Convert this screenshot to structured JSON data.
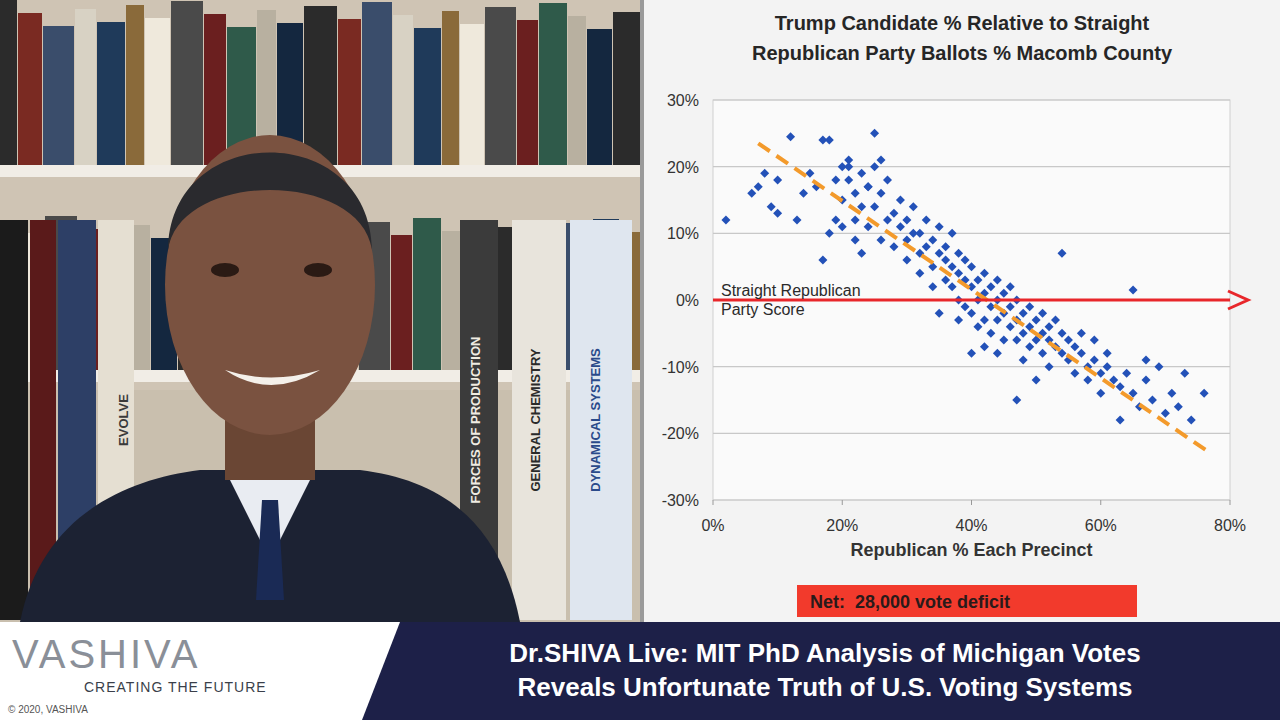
{
  "chart_data": {
    "type": "scatter",
    "title": "Trump Candidate % Relative to Straight Republican Party Ballots % Macomb County",
    "x_label": "Republican % Each Precinct",
    "annotations": [
      "Net:  28,000 vote deficit"
    ],
    "xlim": [
      0,
      80
    ],
    "xticks": [
      {
        "value": 0,
        "label": "0%"
      },
      {
        "value": 20,
        "label": "20%"
      },
      {
        "value": 40,
        "label": "40%"
      },
      {
        "value": 60,
        "label": "60%"
      },
      {
        "value": 80,
        "label": "80%"
      }
    ],
    "ylim": [
      -30,
      30
    ],
    "yticks": [
      {
        "value": -30,
        "label": "-30%"
      },
      {
        "value": -20,
        "label": "-20%"
      },
      {
        "value": -10,
        "label": "-10%"
      },
      {
        "value": 0,
        "label": "0%"
      },
      {
        "value": 10,
        "label": "10%"
      },
      {
        "value": 20,
        "label": "20%"
      },
      {
        "value": 30,
        "label": "30%"
      }
    ],
    "grid": true,
    "series": [
      {
        "type": "scatter",
        "color": "#2351b8",
        "marker": "diamond",
        "x": [
          2,
          6,
          7,
          8,
          9,
          10,
          10,
          12,
          13,
          14,
          15,
          16,
          17,
          18,
          17,
          18,
          19,
          19,
          20,
          20,
          21,
          21,
          22,
          22,
          22,
          23,
          23,
          23,
          24,
          24,
          25,
          25,
          25,
          26,
          26,
          27,
          27,
          28,
          28,
          29,
          29,
          30,
          30,
          30,
          31,
          31,
          32,
          32,
          32,
          33,
          33,
          34,
          34,
          34,
          35,
          35,
          35,
          36,
          36,
          36,
          37,
          37,
          37,
          38,
          38,
          38,
          38,
          39,
          39,
          39,
          40,
          40,
          40,
          40,
          41,
          41,
          41,
          42,
          42,
          42,
          42,
          43,
          43,
          43,
          44,
          44,
          44,
          44,
          45,
          45,
          45,
          46,
          46,
          46,
          47,
          47,
          47,
          47,
          48,
          48,
          48,
          49,
          49,
          49,
          50,
          50,
          50,
          51,
          51,
          51,
          52,
          52,
          52,
          53,
          53,
          54,
          54,
          54,
          55,
          55,
          56,
          56,
          57,
          57,
          58,
          58,
          59,
          59,
          60,
          60,
          61,
          61,
          62,
          63,
          63,
          64,
          65,
          65,
          66,
          67,
          67,
          68,
          69,
          70,
          71,
          72,
          73,
          74,
          76,
          26,
          21,
          24,
          20
        ],
        "values": [
          12,
          16,
          17,
          19,
          14,
          18,
          13,
          24.5,
          12,
          16,
          19,
          17,
          24,
          24,
          6,
          10,
          18,
          12,
          20,
          15,
          20,
          18,
          16,
          12,
          9,
          19,
          14,
          7,
          17,
          11,
          20,
          25,
          14,
          16,
          9,
          18,
          12,
          13,
          8,
          15,
          11,
          12,
          6,
          9,
          14,
          10,
          10,
          7,
          4,
          12,
          8,
          9,
          5,
          2,
          7,
          11,
          -2,
          6,
          3,
          8,
          5,
          2,
          10,
          4,
          7,
          0,
          -3,
          3,
          6,
          -1,
          2,
          5,
          -2,
          -8,
          0,
          3,
          -4,
          1,
          -3,
          4,
          -7,
          -1,
          2,
          -5,
          0,
          -3,
          3,
          -8,
          -2,
          1,
          -6,
          -4,
          -1,
          2,
          -3,
          -6,
          0,
          -15,
          -5,
          -2,
          -9,
          -4,
          -7,
          -1,
          -3,
          -6,
          -12,
          -5,
          -8,
          -2,
          -6,
          -4,
          -10,
          -7,
          -3,
          -8,
          -5,
          7,
          -9,
          -6,
          -7,
          -11,
          -8,
          -5,
          -10,
          -12,
          -9,
          -6,
          -11,
          -14,
          -10,
          -8,
          -12,
          -13,
          -18,
          -11,
          1.5,
          -14,
          -16,
          -12,
          -9,
          -15,
          -10,
          -17,
          -14,
          -16,
          -11,
          -18,
          -14,
          21,
          21,
          17,
          11
        ]
      },
      {
        "type": "line",
        "color": "#f39a2b",
        "line_style": "dashed",
        "x": [
          7,
          77
        ],
        "values": [
          23.5,
          -23
        ]
      },
      {
        "type": "line",
        "name": "Straight Republican Party Score",
        "color": "#e8262a",
        "line_style": "solid",
        "marker": "arrow",
        "x": [
          0,
          80
        ],
        "values": [
          0,
          0
        ]
      }
    ]
  },
  "banner": {
    "text": "Dr.SHIVA Live: MIT PhD Analysis of Michigan Votes Reveals Unfortunate Truth of U.S. Voting Systems"
  },
  "logo": {
    "name": "VASHIVA",
    "tagline": "CREATING THE FUTURE",
    "copyright": "© 2020, VASHIVA"
  },
  "background": {
    "book_titles": [
      "FORCES OF PRODUCTION",
      "GENERAL CHEMISTRY",
      "DYNAMICAL SYSTEMS",
      "EVOLVE"
    ]
  }
}
